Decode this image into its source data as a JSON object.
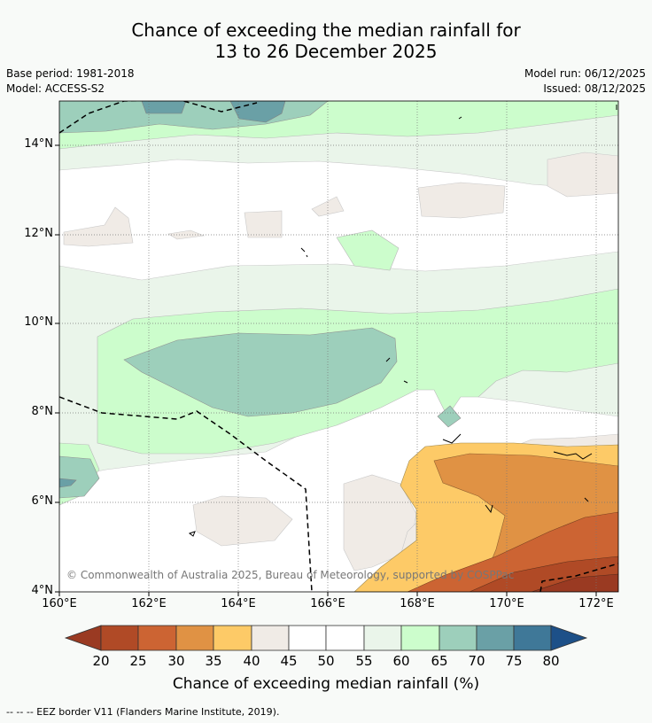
{
  "header": {
    "title_line1": "Chance of exceeding the median rainfall for",
    "title_line2": "13 to 26 December 2025",
    "base_period": "Base period: 1981-2018",
    "model": "Model: ACCESS-S2",
    "model_run": "Model run: 06/12/2025",
    "issued": "Issued: 08/12/2025"
  },
  "map": {
    "lat_labels": [
      "14°N",
      "12°N",
      "10°N",
      "8°N",
      "6°N",
      "4°N"
    ],
    "lon_labels": [
      "160°E",
      "162°E",
      "164°E",
      "166°E",
      "168°E",
      "170°E",
      "172°E"
    ],
    "copyright": "© Commonwealth of Australia 2025, Bureau of Meteorology, supported by COSPPac"
  },
  "colorbar": {
    "ticks": [
      "20",
      "25",
      "30",
      "35",
      "40",
      "45",
      "50",
      "55",
      "60",
      "65",
      "70",
      "75",
      "80"
    ],
    "title": "Chance of exceeding median rainfall (%)",
    "colors": {
      "below20": "#9a3a22",
      "c20_25": "#b04a26",
      "c25_30": "#cc6433",
      "c30_35": "#e09244",
      "c35_40": "#fdca67",
      "c40_45": "#f0ebe6",
      "c45_50": "#ffffff",
      "c50_55": "#ffffff",
      "c55_60": "#eaf5ea",
      "c60_65": "#ccfdcc",
      "c65_70": "#9dcfbb",
      "c70_75": "#6aa0a6",
      "c75_80": "#3f7898",
      "above80": "#1d5088"
    }
  },
  "footer": {
    "legend_note": "--  --  -- EEZ border V11 (Flanders Marine Institute, 2019)."
  }
}
